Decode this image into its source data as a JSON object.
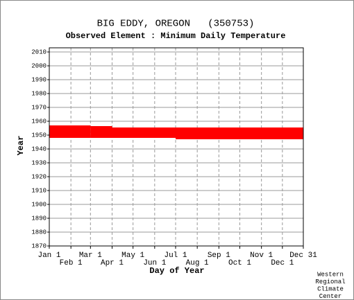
{
  "chart_data": {
    "type": "range-bar",
    "title": "BIG EDDY, OREGON   (350753)",
    "subtitle": "Observed Element : Minimum Daily Temperature",
    "x_label": "Day of Year",
    "y_label": "Year",
    "credit": [
      "Western",
      "Regional",
      "Climate",
      "Center"
    ],
    "color": "#ff0000",
    "grid": true,
    "xlim": [
      1,
      365
    ],
    "ylim": [
      1870,
      2013
    ],
    "xticks": [
      {
        "value": 1,
        "label": "Jan 1"
      },
      {
        "value": 32,
        "label": "Feb 1"
      },
      {
        "value": 60,
        "label": "Mar 1"
      },
      {
        "value": 91,
        "label": "Apr 1"
      },
      {
        "value": 121,
        "label": "May 1"
      },
      {
        "value": 152,
        "label": "Jun 1"
      },
      {
        "value": 182,
        "label": "Jul 1"
      },
      {
        "value": 213,
        "label": "Aug 1"
      },
      {
        "value": 244,
        "label": "Sep 1"
      },
      {
        "value": 274,
        "label": "Oct 1"
      },
      {
        "value": 305,
        "label": "Nov 1"
      },
      {
        "value": 335,
        "label": "Dec 1"
      },
      {
        "value": 365,
        "label": "Dec 31"
      }
    ],
    "yticks": [
      1870,
      1880,
      1890,
      1900,
      1910,
      1920,
      1930,
      1940,
      1950,
      1960,
      1970,
      1980,
      1990,
      2000,
      2010
    ],
    "bars": [
      {
        "x": [
          1,
          60
        ],
        "y": [
          1948,
          1957
        ]
      },
      {
        "x": [
          60,
          91
        ],
        "y": [
          1948,
          1956.5
        ]
      },
      {
        "x": [
          91,
          182
        ],
        "y": [
          1948,
          1955.5
        ]
      },
      {
        "x": [
          182,
          365
        ],
        "y": [
          1947,
          1955.5
        ]
      }
    ]
  }
}
